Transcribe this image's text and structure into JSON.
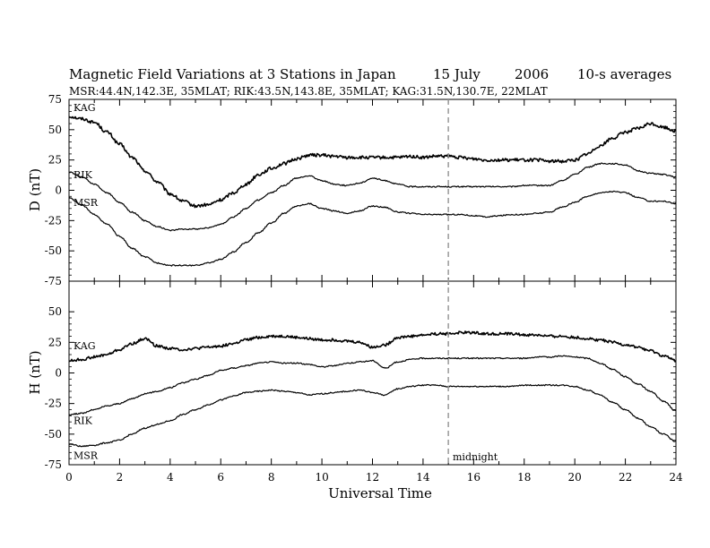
{
  "title": "Magnetic Field Variations at 3 Stations in Japan",
  "date_day": "15 July",
  "date_year": "2006",
  "averaging": "10-s averages",
  "stations_line": "MSR:44.4N,142.3E, 35MLAT;  RIK:43.5N,143.8E, 35MLAT;  KAG:31.5N,130.7E, 22MLAT",
  "chart_data": [
    {
      "type": "line",
      "panel": "top",
      "ylabel": "D (nT)",
      "ylim": [
        -75,
        75
      ],
      "yticks": [
        -75,
        -50,
        -25,
        0,
        25,
        50,
        75
      ],
      "ytick_labels": [
        "-75",
        "-50",
        "-25",
        "0",
        "25",
        "50",
        "75"
      ],
      "xlim": [
        0,
        24
      ],
      "series": [
        {
          "name": "KAG",
          "noise": 1.3,
          "x": [
            0,
            0.5,
            1,
            1.5,
            2,
            2.5,
            3,
            3.5,
            4,
            4.5,
            5,
            5.5,
            6,
            6.5,
            7,
            7.5,
            8,
            8.5,
            9,
            9.5,
            10,
            10.5,
            11,
            11.5,
            12,
            12.5,
            13,
            13.5,
            14,
            14.5,
            15,
            15.5,
            16,
            16.5,
            17,
            17.5,
            18,
            18.5,
            19,
            19.5,
            20,
            20.5,
            21,
            21.5,
            22,
            22.5,
            23,
            23.5,
            24
          ],
          "values": [
            61,
            59,
            56,
            48,
            38,
            27,
            16,
            7,
            -3,
            -9,
            -13,
            -12,
            -8,
            -2,
            5,
            13,
            18,
            22,
            26,
            29,
            29,
            28,
            27,
            27,
            27,
            27,
            27,
            28,
            27,
            28,
            28,
            27,
            26,
            25,
            25,
            25,
            25,
            25,
            24,
            24,
            25,
            30,
            37,
            43,
            48,
            51,
            55,
            52,
            49
          ]
        },
        {
          "name": "RIK",
          "noise": 0.5,
          "x": [
            0,
            0.5,
            1,
            1.5,
            2,
            2.5,
            3,
            3.5,
            4,
            4.5,
            5,
            5.5,
            6,
            6.5,
            7,
            7.5,
            8,
            8.5,
            9,
            9.5,
            10,
            10.5,
            11,
            11.5,
            12,
            12.5,
            13,
            13.5,
            14,
            14.5,
            15,
            15.5,
            16,
            16.5,
            17,
            17.5,
            18,
            18.5,
            19,
            19.5,
            20,
            20.5,
            21,
            21.5,
            22,
            22.5,
            23,
            23.5,
            24
          ],
          "values": [
            15,
            11,
            5,
            -2,
            -10,
            -18,
            -25,
            -30,
            -33,
            -32,
            -32,
            -31,
            -28,
            -22,
            -15,
            -8,
            -2,
            4,
            10,
            12,
            8,
            5,
            4,
            6,
            10,
            8,
            5,
            3,
            3,
            3,
            3,
            3,
            3,
            3,
            3,
            3,
            4,
            4,
            4,
            8,
            13,
            19,
            22,
            22,
            21,
            16,
            14,
            13,
            11
          ]
        },
        {
          "name": "MSR",
          "noise": 0.5,
          "x": [
            0,
            0.5,
            1,
            1.5,
            2,
            2.5,
            3,
            3.5,
            4,
            4.5,
            5,
            5.5,
            6,
            6.5,
            7,
            7.5,
            8,
            8.5,
            9,
            9.5,
            10,
            10.5,
            11,
            11.5,
            12,
            12.5,
            13,
            13.5,
            14,
            14.5,
            15,
            15.5,
            16,
            16.5,
            17,
            17.5,
            18,
            18.5,
            19,
            19.5,
            20,
            20.5,
            21,
            21.5,
            22,
            22.5,
            23,
            23.5,
            24
          ],
          "values": [
            -6,
            -12,
            -20,
            -28,
            -38,
            -48,
            -55,
            -60,
            -62,
            -62,
            -62,
            -60,
            -57,
            -51,
            -43,
            -35,
            -27,
            -19,
            -13,
            -11,
            -15,
            -17,
            -19,
            -17,
            -13,
            -14,
            -18,
            -19,
            -20,
            -20,
            -20,
            -20,
            -21,
            -22,
            -21,
            -20,
            -20,
            -19,
            -18,
            -14,
            -10,
            -5,
            -2,
            -1,
            -2,
            -6,
            -9,
            -9,
            -11
          ]
        }
      ],
      "series_labels": [
        "KAG",
        "RIK",
        "MSR"
      ]
    },
    {
      "type": "line",
      "panel": "bottom",
      "ylabel": "H (nT)",
      "xlabel": "Universal Time",
      "ylim": [
        -75,
        75
      ],
      "yticks": [
        -75,
        -50,
        -25,
        0,
        25,
        50
      ],
      "ytick_labels": [
        "-75",
        "-50",
        "-25",
        "0",
        "25",
        "50"
      ],
      "xlim": [
        0,
        24
      ],
      "xticks": [
        0,
        2,
        4,
        6,
        8,
        10,
        12,
        14,
        16,
        18,
        20,
        22,
        24
      ],
      "xtick_labels": [
        "0",
        "2",
        "4",
        "6",
        "8",
        "10",
        "12",
        "14",
        "16",
        "18",
        "20",
        "22",
        "24"
      ],
      "series": [
        {
          "name": "KAG",
          "noise": 1.1,
          "x": [
            0,
            0.5,
            1,
            1.5,
            2,
            2.5,
            3,
            3.5,
            4,
            4.5,
            5,
            5.5,
            6,
            6.5,
            7,
            7.5,
            8,
            8.5,
            9,
            9.5,
            10,
            10.5,
            11,
            11.5,
            12,
            12.5,
            13,
            13.5,
            14,
            14.5,
            15,
            15.5,
            16,
            16.5,
            17,
            17.5,
            18,
            18.5,
            19,
            19.5,
            20,
            20.5,
            21,
            21.5,
            22,
            22.5,
            23,
            23.5,
            24
          ],
          "values": [
            10,
            11,
            13,
            15,
            19,
            24,
            28,
            22,
            20,
            19,
            20,
            21,
            22,
            24,
            27,
            29,
            30,
            30,
            29,
            28,
            27,
            27,
            26,
            25,
            21,
            23,
            29,
            30,
            31,
            32,
            32,
            33,
            33,
            32,
            32,
            32,
            31,
            31,
            30,
            30,
            29,
            28,
            27,
            25,
            23,
            21,
            18,
            14,
            10
          ]
        },
        {
          "name": "RIK",
          "noise": 0.5,
          "x": [
            0,
            0.5,
            1,
            1.5,
            2,
            2.5,
            3,
            3.5,
            4,
            4.5,
            5,
            5.5,
            6,
            6.5,
            7,
            7.5,
            8,
            8.5,
            9,
            9.5,
            10,
            10.5,
            11,
            11.5,
            12,
            12.5,
            13,
            13.5,
            14,
            14.5,
            15,
            15.5,
            16,
            16.5,
            17,
            17.5,
            18,
            18.5,
            19,
            19.5,
            20,
            20.5,
            21,
            21.5,
            22,
            22.5,
            23,
            23.5,
            24
          ],
          "values": [
            -34,
            -33,
            -30,
            -27,
            -25,
            -21,
            -17,
            -15,
            -12,
            -8,
            -5,
            -2,
            2,
            4,
            6,
            8,
            9,
            8,
            8,
            7,
            5,
            6,
            8,
            9,
            10,
            4,
            9,
            11,
            12,
            12,
            12,
            12,
            12,
            12,
            12,
            12,
            12,
            13,
            13,
            14,
            13,
            12,
            8,
            3,
            -3,
            -9,
            -15,
            -23,
            -31
          ]
        },
        {
          "name": "MSR",
          "noise": 0.5,
          "x": [
            0,
            0.5,
            1,
            1.5,
            2,
            2.5,
            3,
            3.5,
            4,
            4.5,
            5,
            5.5,
            6,
            6.5,
            7,
            7.5,
            8,
            8.5,
            9,
            9.5,
            10,
            10.5,
            11,
            11.5,
            12,
            12.5,
            13,
            13.5,
            14,
            14.5,
            15,
            15.5,
            16,
            16.5,
            17,
            17.5,
            18,
            18.5,
            19,
            19.5,
            20,
            20.5,
            21,
            21.5,
            22,
            22.5,
            23,
            23.5,
            24
          ],
          "values": [
            -58,
            -60,
            -59,
            -57,
            -55,
            -50,
            -45,
            -42,
            -39,
            -34,
            -30,
            -26,
            -22,
            -19,
            -16,
            -15,
            -14,
            -15,
            -16,
            -18,
            -17,
            -16,
            -15,
            -14,
            -16,
            -18,
            -13,
            -11,
            -10,
            -10,
            -11,
            -11,
            -11,
            -11,
            -11,
            -11,
            -10,
            -10,
            -10,
            -10,
            -11,
            -14,
            -18,
            -24,
            -30,
            -37,
            -44,
            -50,
            -56
          ]
        }
      ],
      "series_labels": [
        "KAG",
        "RIK",
        "MSR"
      ],
      "annotation": "midnight",
      "marker_x": 15
    }
  ]
}
